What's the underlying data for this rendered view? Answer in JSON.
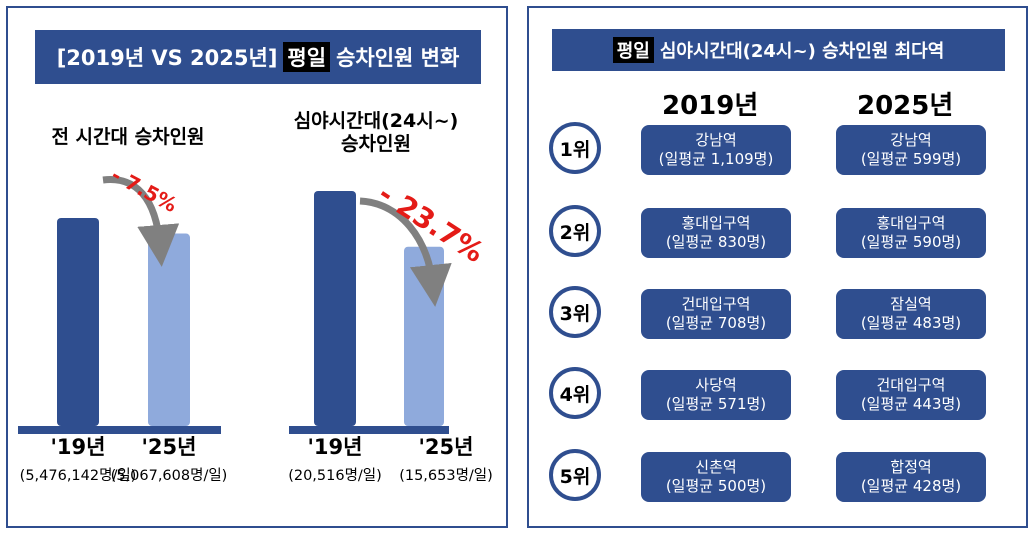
{
  "left_panel": {
    "title_prefix": "[2019년 VS 2025년]",
    "title_highlight": "평일",
    "title_suffix": "승차인원 변화",
    "charts_text": [
      {
        "title_lines": [
          "전 시간대 승차인원"
        ],
        "change_label": "- 7.5%",
        "bars": [
          {
            "label": "'19년",
            "sublabel": "(5,476,142명/일)"
          },
          {
            "label": "'25년",
            "sublabel": "(5,067,608명/일)"
          }
        ]
      },
      {
        "title_lines": [
          "심야시간대(24시~)",
          "승차인원"
        ],
        "change_label": "- 23.7%",
        "bars": [
          {
            "label": "'19년",
            "sublabel": "(20,516명/일)"
          },
          {
            "label": "'25년",
            "sublabel": "(15,653명/일)"
          }
        ]
      }
    ]
  },
  "chart_data": [
    {
      "type": "bar",
      "title": "전 시간대 승차인원",
      "categories": [
        "'19년",
        "'25년"
      ],
      "values": [
        5476142,
        5067608
      ],
      "unit": "명/일",
      "annotation": "- 7.5%"
    },
    {
      "type": "bar",
      "title": "심야시간대(24시~) 승차인원",
      "categories": [
        "'19년",
        "'25년"
      ],
      "values": [
        20516,
        15653
      ],
      "unit": "명/일",
      "annotation": "- 23.7%"
    }
  ],
  "right_panel": {
    "title_highlight": "평일",
    "title_suffix": "심야시간대(24시~) 승차인원 최다역",
    "year_headers": [
      "2019년",
      "2025년"
    ],
    "avg_prefix": "(일평균",
    "rows": [
      {
        "rank": "1위",
        "y2019": {
          "station": "강남역",
          "count": "1,109명)"
        },
        "y2025": {
          "station": "강남역",
          "count": "599명)"
        }
      },
      {
        "rank": "2위",
        "y2019": {
          "station": "홍대입구역",
          "count": "830명)"
        },
        "y2025": {
          "station": "홍대입구역",
          "count": "590명)"
        }
      },
      {
        "rank": "3위",
        "y2019": {
          "station": "건대입구역",
          "count": "708명)"
        },
        "y2025": {
          "station": "잠실역",
          "count": "483명)"
        }
      },
      {
        "rank": "4위",
        "y2019": {
          "station": "사당역",
          "count": "571명)"
        },
        "y2025": {
          "station": "건대입구역",
          "count": "443명)"
        }
      },
      {
        "rank": "5위",
        "y2019": {
          "station": "신촌역",
          "count": "500명)"
        },
        "y2025": {
          "station": "합정역",
          "count": "428명)"
        }
      }
    ]
  },
  "colors": {
    "navy": "#2f4e8f",
    "bar_2019": "#2f4e8f",
    "bar_2025": "#8faadc",
    "arrow": "#808080",
    "change_red": "#e41b17"
  }
}
